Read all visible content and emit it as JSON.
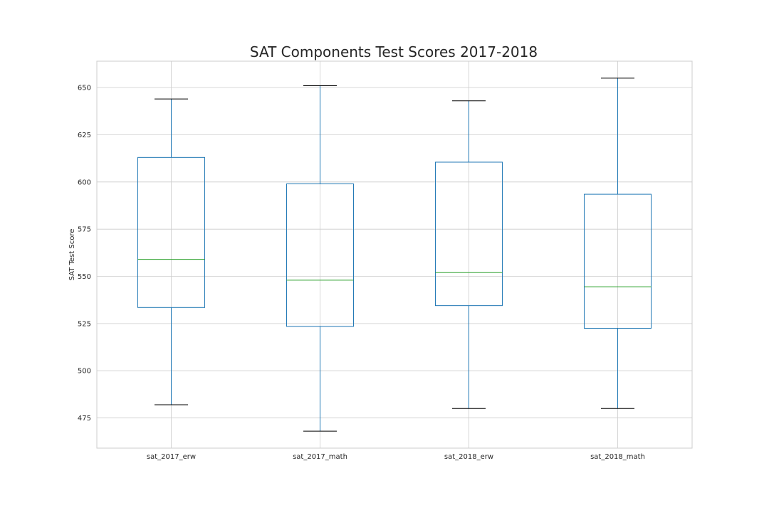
{
  "chart_data": {
    "type": "box",
    "title": "SAT Components Test Scores 2017-2018",
    "xlabel": "",
    "ylabel": "SAT Test Score",
    "ylim": [
      459,
      664
    ],
    "yticks": [
      475,
      500,
      525,
      550,
      575,
      600,
      625,
      650
    ],
    "grid": true,
    "categories": [
      "sat_2017_erw",
      "sat_2017_math",
      "sat_2018_erw",
      "sat_2018_math"
    ],
    "boxes": [
      {
        "whisker_low": 482,
        "q1": 533.5,
        "median": 559,
        "q3": 613,
        "whisker_high": 644
      },
      {
        "whisker_low": 468,
        "q1": 523.5,
        "median": 548,
        "q3": 599,
        "whisker_high": 651
      },
      {
        "whisker_low": 480,
        "q1": 534.5,
        "median": 552,
        "q3": 610.5,
        "whisker_high": 643
      },
      {
        "whisker_low": 480,
        "q1": 522.5,
        "median": 544.5,
        "q3": 593.5,
        "whisker_high": 655
      }
    ],
    "colors": {
      "box": "#1f77b4",
      "median": "#2ca02c",
      "cap": "#000000"
    }
  }
}
